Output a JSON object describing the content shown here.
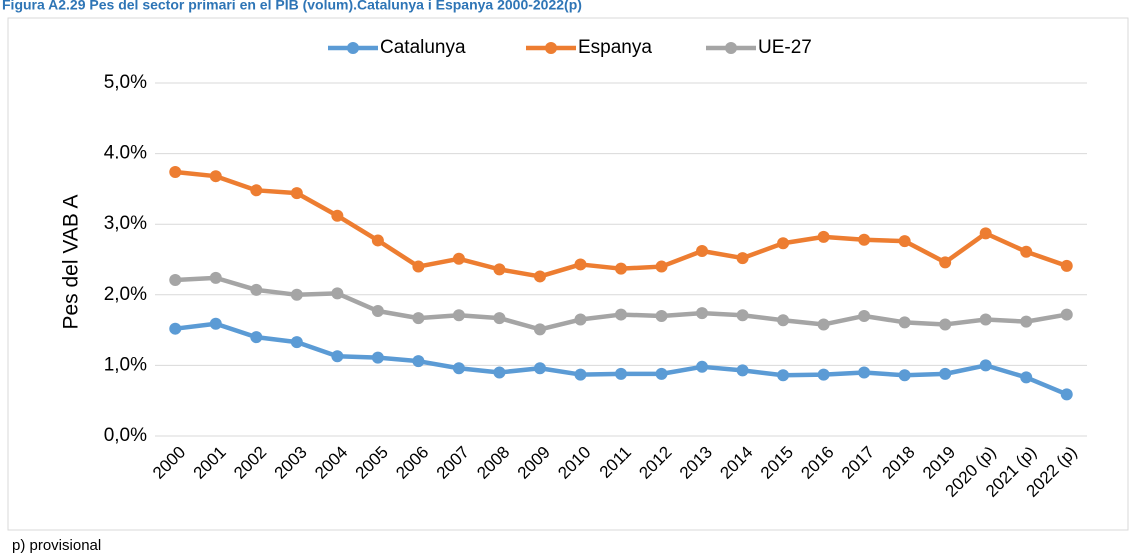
{
  "chart_data": {
    "type": "line",
    "title": "Figura A2.29 Pes del sector primari en el PIB (volum).Catalunya i Espanya 2000-2022(p)",
    "y_label": "Pes del VAB A",
    "note": "p) provisional",
    "categories": [
      "2000",
      "2001",
      "2002",
      "2003",
      "2004",
      "2005",
      "2006",
      "2007",
      "2008",
      "2009",
      "2010",
      "2011",
      "2012",
      "2013",
      "2014",
      "2015",
      "2016",
      "2017",
      "2018",
      "2019",
      "2020 (p)",
      "2021 (p)",
      "2022 (p)"
    ],
    "series": [
      {
        "name": "Catalunya",
        "color": "#5b9bd5",
        "values": [
          1.52,
          1.59,
          1.4,
          1.33,
          1.13,
          1.11,
          1.06,
          0.96,
          0.9,
          0.96,
          0.87,
          0.88,
          0.88,
          0.98,
          0.93,
          0.86,
          0.87,
          0.9,
          0.86,
          0.88,
          1.0,
          0.83,
          0.59
        ]
      },
      {
        "name": "Espanya",
        "color": "#ed7d31",
        "values": [
          3.74,
          3.68,
          3.48,
          3.44,
          3.12,
          2.77,
          2.4,
          2.51,
          2.36,
          2.26,
          2.43,
          2.37,
          2.4,
          2.62,
          2.52,
          2.73,
          2.82,
          2.78,
          2.76,
          2.46,
          2.87,
          2.61,
          2.41
        ]
      },
      {
        "name": "UE-27",
        "color": "#a5a5a5",
        "values": [
          2.21,
          2.24,
          2.07,
          2.0,
          2.02,
          1.77,
          1.67,
          1.71,
          1.67,
          1.51,
          1.65,
          1.72,
          1.7,
          1.74,
          1.71,
          1.64,
          1.58,
          1.7,
          1.61,
          1.58,
          1.65,
          1.62,
          1.72
        ]
      }
    ],
    "ylim": [
      0,
      5
    ],
    "yticks": [
      {
        "value": 0,
        "label": "0,0%"
      },
      {
        "value": 1,
        "label": "1,0%"
      },
      {
        "value": 2,
        "label": "2,0%"
      },
      {
        "value": 3,
        "label": "3,0%"
      },
      {
        "value": 4,
        "label": "4.0%"
      },
      {
        "value": 5,
        "label": "5,0%"
      }
    ],
    "grid": true,
    "legend": "top"
  }
}
